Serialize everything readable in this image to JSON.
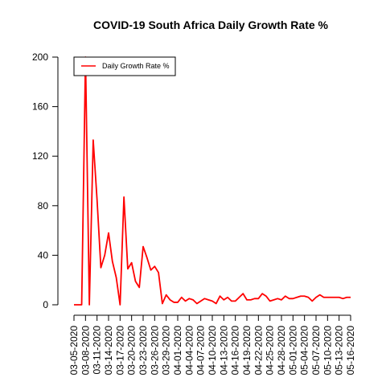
{
  "chart_data": {
    "type": "line",
    "title": "COVID-19 South Africa Daily Growth Rate %",
    "xlabel": "",
    "ylabel": "",
    "ylim": [
      0,
      200
    ],
    "yticks": [
      0,
      40,
      80,
      120,
      160,
      200
    ],
    "grid": false,
    "legend_position": "top-left",
    "x_tick_labels": [
      "03-05-2020",
      "03-08-2020",
      "03-11-2020",
      "03-14-2020",
      "03-17-2020",
      "03-20-2020",
      "03-23-2020",
      "03-26-2020",
      "03-29-2020",
      "04-01-2020",
      "04-04-2020",
      "04-07-2020",
      "04-10-2020",
      "04-13-2020",
      "04-16-2020",
      "04-19-2020",
      "04-22-2020",
      "04-25-2020",
      "04-28-2020",
      "05-01-2020",
      "05-04-2020",
      "05-07-2020",
      "05-10-2020",
      "05-13-2020",
      "05-16-2020"
    ],
    "x": [
      "03-05-2020",
      "03-06-2020",
      "03-07-2020",
      "03-08-2020",
      "03-09-2020",
      "03-10-2020",
      "03-11-2020",
      "03-12-2020",
      "03-13-2020",
      "03-14-2020",
      "03-15-2020",
      "03-16-2020",
      "03-17-2020",
      "03-18-2020",
      "03-19-2020",
      "03-20-2020",
      "03-21-2020",
      "03-22-2020",
      "03-23-2020",
      "03-24-2020",
      "03-25-2020",
      "03-26-2020",
      "03-27-2020",
      "03-28-2020",
      "03-29-2020",
      "03-30-2020",
      "03-31-2020",
      "04-01-2020",
      "04-02-2020",
      "04-03-2020",
      "04-04-2020",
      "04-05-2020",
      "04-06-2020",
      "04-07-2020",
      "04-08-2020",
      "04-09-2020",
      "04-10-2020",
      "04-11-2020",
      "04-12-2020",
      "04-13-2020",
      "04-14-2020",
      "04-15-2020",
      "04-16-2020",
      "04-17-2020",
      "04-18-2020",
      "04-19-2020",
      "04-20-2020",
      "04-21-2020",
      "04-22-2020",
      "04-23-2020",
      "04-24-2020",
      "04-25-2020",
      "04-26-2020",
      "04-27-2020",
      "04-28-2020",
      "04-29-2020",
      "04-30-2020",
      "05-01-2020",
      "05-02-2020",
      "05-03-2020",
      "05-04-2020",
      "05-05-2020",
      "05-06-2020",
      "05-07-2020",
      "05-08-2020",
      "05-09-2020",
      "05-10-2020",
      "05-11-2020",
      "05-12-2020",
      "05-13-2020",
      "05-14-2020",
      "05-15-2020",
      "05-16-2020"
    ],
    "series": [
      {
        "name": "Daily Growth Rate %",
        "color": "#ff0000",
        "values": [
          0,
          0,
          0,
          200,
          0,
          133,
          85,
          30,
          40,
          58,
          35,
          22,
          0,
          87,
          29,
          34,
          19,
          14,
          47,
          38,
          28,
          31,
          26,
          1,
          8,
          4,
          2,
          2,
          6,
          3,
          5,
          4,
          1,
          3,
          5,
          4,
          3,
          1,
          7,
          4,
          6,
          3,
          3,
          6,
          9,
          4,
          4,
          5,
          5,
          9,
          7,
          3,
          4,
          5,
          4,
          7,
          5,
          5,
          6,
          7,
          7,
          6,
          3,
          6,
          8,
          6,
          6,
          6,
          6,
          6,
          5,
          6,
          6
        ]
      }
    ]
  }
}
